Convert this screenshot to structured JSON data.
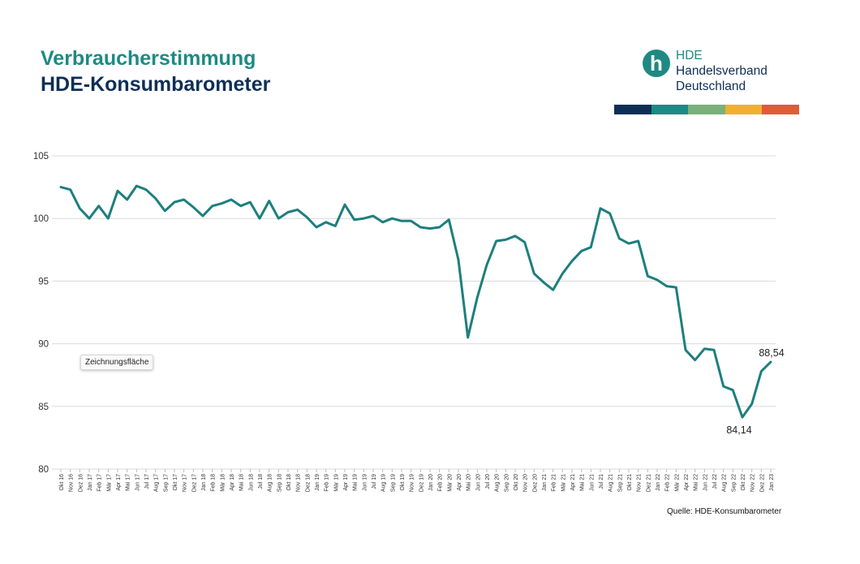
{
  "header": {
    "title_line1": "Verbraucherstimmung",
    "title_line2": "HDE-Konsumbarometer"
  },
  "logo": {
    "mark": "h",
    "line1": "HDE",
    "line2": "Handelsverband",
    "line3": "Deutschland",
    "stripe_colors": [
      "#0e2f55",
      "#1d8a84",
      "#7ab07a",
      "#f0b030",
      "#e25a3a"
    ]
  },
  "tooltip": {
    "text": "Zeichnungsfläche"
  },
  "source": {
    "text": "Quelle: HDE-Konsumbarometer"
  },
  "colors": {
    "line": "#1d7f7e",
    "grid": "#d9d9d9"
  },
  "chart_data": {
    "type": "line",
    "ylim": [
      80,
      105
    ],
    "yticks": [
      80,
      85,
      90,
      95,
      100,
      105
    ],
    "grid": true,
    "x": [
      "Okt 16",
      "Nov 16",
      "Dez 16",
      "Jan 17",
      "Feb 17",
      "Mär 17",
      "Apr 17",
      "Mai 17",
      "Jun 17",
      "Jul 17",
      "Aug 17",
      "Sep 17",
      "Okt 17",
      "Nov 17",
      "Dez 17",
      "Jan 18",
      "Feb 18",
      "Mär 18",
      "Apr 18",
      "Mai 18",
      "Jun 18",
      "Jul 18",
      "Aug 18",
      "Sep 18",
      "Okt 18",
      "Nov 18",
      "Dez 18",
      "Jan 19",
      "Feb 19",
      "Mär 19",
      "Apr 19",
      "Mai 19",
      "Jun 19",
      "Jul 19",
      "Aug 19",
      "Sep 19",
      "Okt 19",
      "Nov 19",
      "Dez 19",
      "Jan 20",
      "Feb 20",
      "Mär 20",
      "Apr 20",
      "Mai 20",
      "Jun 20",
      "Jul 20",
      "Aug 20",
      "Sep 20",
      "Okt 20",
      "Nov 20",
      "Dez 20",
      "Jan 21",
      "Feb 21",
      "Mär 21",
      "Apr 21",
      "Mai 21",
      "Jun 21",
      "Jul 21",
      "Aug 21",
      "Sep 21",
      "Okt 21",
      "Nov 21",
      "Dez 21",
      "Jan 22",
      "Feb 22",
      "Mär 22",
      "Apr 22",
      "Mai 22",
      "Jun 22",
      "Jul 22",
      "Aug 22",
      "Sep 22",
      "Okt 22",
      "Nov 22",
      "Dez 22",
      "Jan 23"
    ],
    "series": [
      {
        "values": [
          102.5,
          102.3,
          100.8,
          100.0,
          101.0,
          100.0,
          102.2,
          101.5,
          102.6,
          102.3,
          101.6,
          100.6,
          101.3,
          101.5,
          100.9,
          100.2,
          101.0,
          101.2,
          101.5,
          101.0,
          101.3,
          100.0,
          101.4,
          100.0,
          100.5,
          100.7,
          100.1,
          99.3,
          99.7,
          99.4,
          101.1,
          99.9,
          100.0,
          100.2,
          99.7,
          100.0,
          99.8,
          99.8,
          99.3,
          99.2,
          99.3,
          99.9,
          96.7,
          90.5,
          93.7,
          96.3,
          98.2,
          98.3,
          98.6,
          98.1,
          95.6,
          94.9,
          94.3,
          95.6,
          96.6,
          97.4,
          97.7,
          100.8,
          100.4,
          98.4,
          98.0,
          98.2,
          95.4,
          95.1,
          94.6,
          94.5,
          89.5,
          88.7,
          89.6,
          89.5,
          86.6,
          86.3,
          84.14,
          85.2,
          87.8,
          88.54
        ]
      }
    ],
    "annotations": [
      {
        "label": "84,14",
        "x": "Okt 22",
        "value": 84.14
      },
      {
        "label": "88,54",
        "x": "Jan 23",
        "value": 88.54
      }
    ]
  }
}
